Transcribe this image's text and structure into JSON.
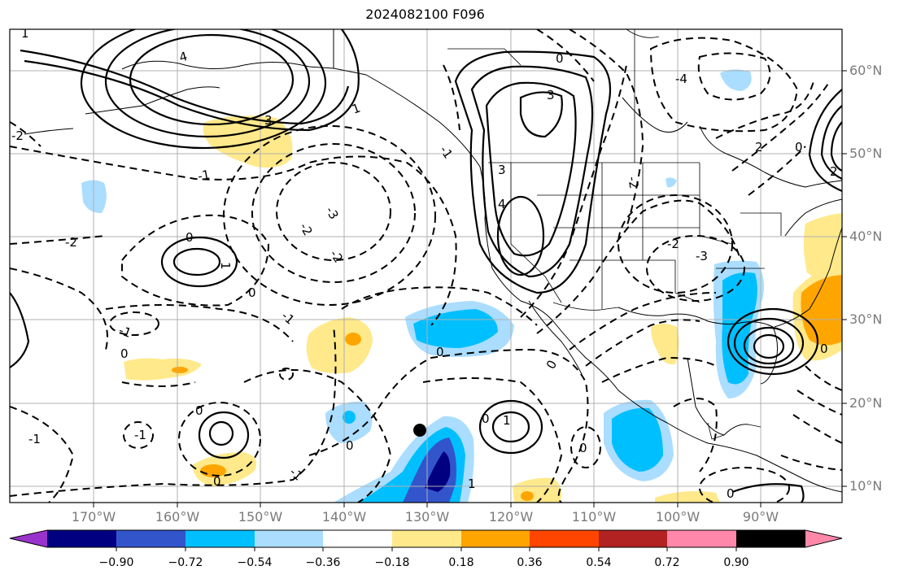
{
  "title": "2024082100 F096",
  "lon_labels": [
    "170°W",
    "160°W",
    "150°W",
    "140°W",
    "130°W",
    "120°W",
    "110°W",
    "100°W",
    "90°W"
  ],
  "lat_labels": [
    "60°N",
    "50°N",
    "40°N",
    "30°N",
    "20°N",
    "10°N"
  ],
  "colorbar": {
    "colors": [
      "#9933cc",
      "#000080",
      "#3355cc",
      "#00bfff",
      "#aaddff",
      "#ffffff",
      "#ffe98a",
      "#ffa500",
      "#ff4500",
      "#b22222",
      "#ff88aa"
    ],
    "tick_labels": [
      "−0.90",
      "−0.72",
      "−0.54",
      "−0.36",
      "−0.18",
      "0.18",
      "0.36",
      "0.54",
      "0.72",
      "0.90"
    ]
  },
  "contour_labels": [
    "4",
    "3",
    "1",
    "-1",
    "-2",
    "0",
    "-3",
    "2",
    "-4"
  ]
}
